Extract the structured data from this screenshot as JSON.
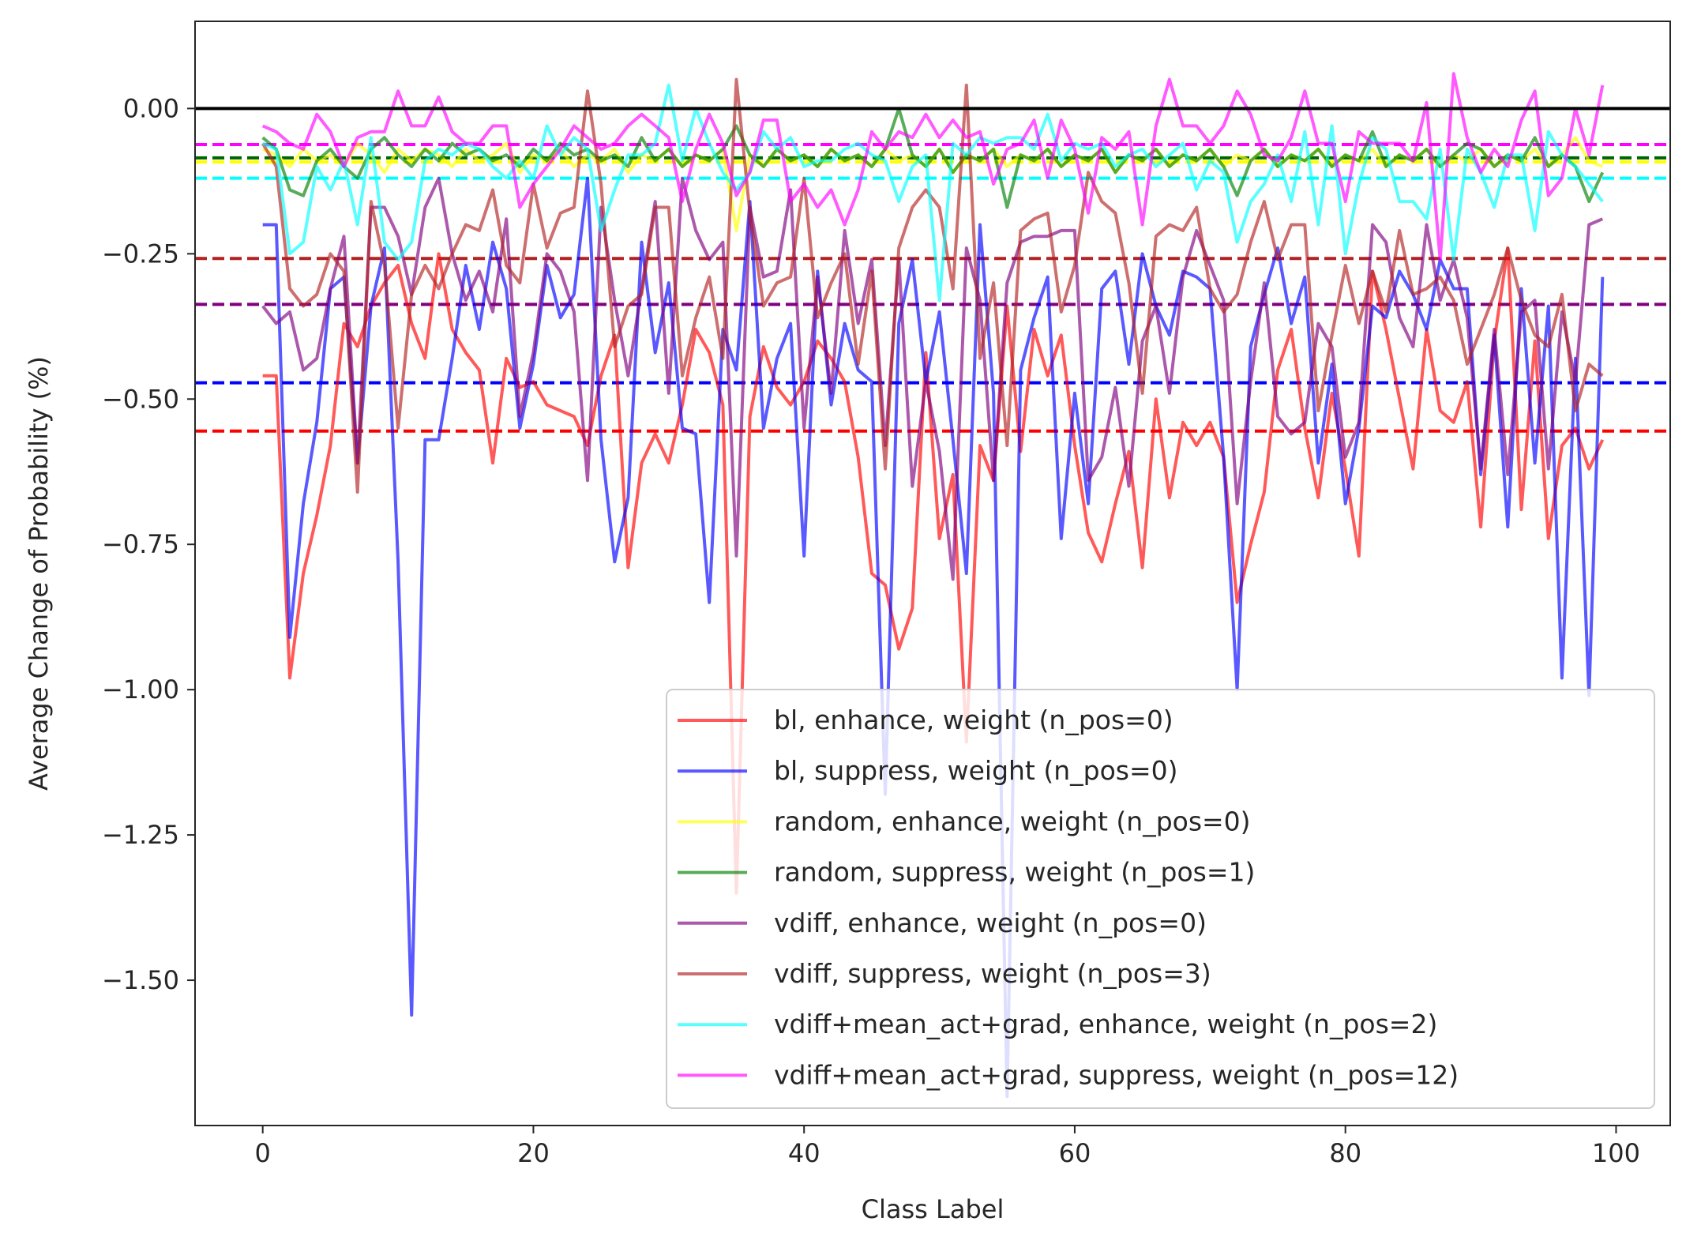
{
  "chart_data": {
    "type": "line",
    "title": "",
    "xlabel": "Class Label",
    "ylabel": "Average Change of Probability (%)",
    "xlim": [
      -5,
      104
    ],
    "ylim": [
      -1.75,
      0.15
    ],
    "xticks": [
      0,
      20,
      40,
      60,
      80,
      100
    ],
    "yticks": [
      0.0,
      -0.25,
      -0.5,
      -0.75,
      -1.0,
      -1.25,
      -1.5
    ],
    "xtick_labels": [
      "0",
      "20",
      "40",
      "60",
      "80",
      "100"
    ],
    "ytick_labels": [
      "0.00",
      "−0.25",
      "−0.50",
      "−0.75",
      "−1.00",
      "−1.25",
      "−1.50"
    ],
    "grid": false,
    "legend_position": "lower-right",
    "zero_line": {
      "y": 0.0,
      "color": "#000000"
    },
    "mean_lines": [
      {
        "y": -0.555,
        "color": "#ff0000"
      },
      {
        "y": -0.472,
        "color": "#0000ff"
      },
      {
        "y": -0.337,
        "color": "#800080"
      },
      {
        "y": -0.258,
        "color": "#b22222"
      },
      {
        "y": -0.12,
        "color": "#00ffff"
      },
      {
        "y": -0.092,
        "color": "#ffff00"
      },
      {
        "y": -0.085,
        "color": "#006400"
      },
      {
        "y": -0.062,
        "color": "#ff00ff"
      }
    ],
    "series": [
      {
        "name": "bl, enhance, weight (n_pos=0)",
        "color": "#ff0000",
        "values": [
          -0.46,
          -0.46,
          -0.98,
          -0.8,
          -0.7,
          -0.58,
          -0.37,
          -0.41,
          -0.34,
          -0.3,
          -0.27,
          -0.37,
          -0.43,
          -0.25,
          -0.38,
          -0.42,
          -0.45,
          -0.61,
          -0.43,
          -0.48,
          -0.47,
          -0.51,
          -0.52,
          -0.53,
          -0.58,
          -0.46,
          -0.39,
          -0.79,
          -0.61,
          -0.56,
          -0.61,
          -0.51,
          -0.38,
          -0.42,
          -0.51,
          -1.35,
          -0.53,
          -0.41,
          -0.48,
          -0.51,
          -0.47,
          -0.4,
          -0.43,
          -0.47,
          -0.6,
          -0.8,
          -0.82,
          -0.93,
          -0.86,
          -0.42,
          -0.74,
          -0.63,
          -1.09,
          -0.58,
          -0.64,
          -0.34,
          -0.59,
          -0.38,
          -0.46,
          -0.39,
          -0.58,
          -0.73,
          -0.78,
          -0.68,
          -0.59,
          -0.79,
          -0.5,
          -0.67,
          -0.54,
          -0.58,
          -0.54,
          -0.6,
          -0.85,
          -0.75,
          -0.66,
          -0.45,
          -0.38,
          -0.55,
          -0.67,
          -0.49,
          -0.62,
          -0.77,
          -0.28,
          -0.38,
          -0.5,
          -0.62,
          -0.38,
          -0.52,
          -0.54,
          -0.47,
          -0.72,
          -0.4,
          -0.24,
          -0.69,
          -0.4,
          -0.74,
          -0.58,
          -0.55,
          -0.62,
          -0.57
        ]
      },
      {
        "name": "bl, suppress, weight (n_pos=0)",
        "color": "#0000ff",
        "values": [
          -0.2,
          -0.2,
          -0.91,
          -0.68,
          -0.54,
          -0.31,
          -0.29,
          -0.61,
          -0.34,
          -0.24,
          -0.78,
          -1.56,
          -0.57,
          -0.57,
          -0.43,
          -0.27,
          -0.38,
          -0.23,
          -0.31,
          -0.55,
          -0.44,
          -0.27,
          -0.36,
          -0.32,
          -0.12,
          -0.57,
          -0.78,
          -0.67,
          -0.23,
          -0.42,
          -0.3,
          -0.55,
          -0.56,
          -0.85,
          -0.38,
          -0.45,
          -0.16,
          -0.55,
          -0.43,
          -0.37,
          -0.77,
          -0.28,
          -0.51,
          -0.37,
          -0.45,
          -0.47,
          -1.18,
          -0.37,
          -0.26,
          -0.47,
          -0.35,
          -0.57,
          -0.8,
          -0.2,
          -0.49,
          -1.7,
          -0.45,
          -0.36,
          -0.29,
          -0.74,
          -0.49,
          -0.68,
          -0.31,
          -0.28,
          -0.44,
          -0.25,
          -0.34,
          -0.39,
          -0.28,
          -0.29,
          -0.31,
          -0.6,
          -1.0,
          -0.41,
          -0.32,
          -0.24,
          -0.37,
          -0.29,
          -0.61,
          -0.44,
          -0.68,
          -0.55,
          -0.34,
          -0.36,
          -0.28,
          -0.32,
          -0.38,
          -0.26,
          -0.31,
          -0.31,
          -0.63,
          -0.39,
          -0.72,
          -0.31,
          -0.61,
          -0.34,
          -0.98,
          -0.43,
          -1.01,
          -0.29
        ]
      },
      {
        "name": "random, enhance, weight (n_pos=0)",
        "color": "#ffff00",
        "values": [
          -0.07,
          -0.08,
          -0.1,
          -0.07,
          -0.09,
          -0.08,
          -0.1,
          -0.06,
          -0.08,
          -0.11,
          -0.07,
          -0.09,
          -0.07,
          -0.08,
          -0.1,
          -0.07,
          -0.09,
          -0.08,
          -0.06,
          -0.11,
          -0.08,
          -0.09,
          -0.07,
          -0.1,
          -0.08,
          -0.09,
          -0.07,
          -0.11,
          -0.08,
          -0.09,
          -0.07,
          -0.1,
          -0.08,
          -0.09,
          -0.07,
          -0.21,
          -0.08,
          -0.1,
          -0.07,
          -0.09,
          -0.08,
          -0.1,
          -0.07,
          -0.09,
          -0.08,
          -0.1,
          -0.07,
          -0.09,
          -0.08,
          -0.1,
          -0.07,
          -0.11,
          -0.08,
          -0.09,
          -0.07,
          -0.1,
          -0.08,
          -0.09,
          -0.07,
          -0.1,
          -0.08,
          -0.09,
          -0.07,
          -0.11,
          -0.08,
          -0.09,
          -0.07,
          -0.1,
          -0.08,
          -0.09,
          -0.07,
          -0.1,
          -0.08,
          -0.09,
          -0.07,
          -0.1,
          -0.08,
          -0.09,
          -0.07,
          -0.1,
          -0.08,
          -0.09,
          -0.07,
          -0.1,
          -0.08,
          -0.09,
          -0.07,
          -0.1,
          -0.08,
          -0.09,
          -0.07,
          -0.1,
          -0.08,
          -0.09,
          -0.07,
          -0.1,
          -0.08,
          -0.05,
          -0.09,
          -0.1
        ]
      },
      {
        "name": "random, suppress, weight (n_pos=1)",
        "color": "#008000",
        "values": [
          -0.05,
          -0.07,
          -0.14,
          -0.15,
          -0.09,
          -0.07,
          -0.1,
          -0.12,
          -0.07,
          -0.05,
          -0.08,
          -0.1,
          -0.07,
          -0.09,
          -0.06,
          -0.08,
          -0.07,
          -0.09,
          -0.08,
          -0.1,
          -0.07,
          -0.09,
          -0.06,
          -0.08,
          -0.07,
          -0.09,
          -0.08,
          -0.1,
          -0.05,
          -0.09,
          -0.07,
          -0.1,
          -0.08,
          -0.09,
          -0.07,
          -0.03,
          -0.08,
          -0.1,
          -0.07,
          -0.09,
          -0.08,
          -0.1,
          -0.07,
          -0.09,
          -0.08,
          -0.1,
          -0.07,
          0.0,
          -0.08,
          -0.1,
          -0.07,
          -0.11,
          -0.08,
          -0.09,
          -0.07,
          -0.17,
          -0.08,
          -0.09,
          -0.07,
          -0.1,
          -0.08,
          -0.09,
          -0.07,
          -0.11,
          -0.08,
          -0.09,
          -0.07,
          -0.1,
          -0.08,
          -0.09,
          -0.07,
          -0.1,
          -0.15,
          -0.09,
          -0.07,
          -0.1,
          -0.08,
          -0.09,
          -0.07,
          -0.1,
          -0.08,
          -0.09,
          -0.04,
          -0.1,
          -0.08,
          -0.09,
          -0.07,
          -0.1,
          -0.08,
          -0.06,
          -0.07,
          -0.1,
          -0.08,
          -0.09,
          -0.05,
          -0.1,
          -0.08,
          -0.1,
          -0.16,
          -0.11
        ]
      },
      {
        "name": "vdiff, enhance, weight (n_pos=0)",
        "color": "#800080",
        "values": [
          -0.34,
          -0.37,
          -0.35,
          -0.45,
          -0.43,
          -0.31,
          -0.22,
          -0.61,
          -0.17,
          -0.17,
          -0.22,
          -0.32,
          -0.17,
          -0.12,
          -0.25,
          -0.33,
          -0.28,
          -0.35,
          -0.19,
          -0.53,
          -0.42,
          -0.25,
          -0.28,
          -0.35,
          -0.64,
          -0.17,
          -0.33,
          -0.46,
          -0.31,
          -0.16,
          -0.49,
          -0.12,
          -0.21,
          -0.26,
          -0.23,
          -0.77,
          -0.17,
          -0.29,
          -0.28,
          -0.14,
          -0.55,
          -0.29,
          -0.49,
          -0.21,
          -0.37,
          -0.26,
          -0.58,
          -0.26,
          -0.65,
          -0.47,
          -0.59,
          -0.81,
          -0.24,
          -0.33,
          -0.64,
          -0.3,
          -0.23,
          -0.22,
          -0.22,
          -0.21,
          -0.21,
          -0.64,
          -0.6,
          -0.48,
          -0.65,
          -0.4,
          -0.34,
          -0.49,
          -0.29,
          -0.21,
          -0.27,
          -0.33,
          -0.68,
          -0.47,
          -0.3,
          -0.53,
          -0.56,
          -0.54,
          -0.37,
          -0.41,
          -0.6,
          -0.54,
          -0.2,
          -0.23,
          -0.36,
          -0.41,
          -0.2,
          -0.33,
          -0.26,
          -0.36,
          -0.62,
          -0.38,
          -0.63,
          -0.35,
          -0.33,
          -0.62,
          -0.35,
          -0.47,
          -0.2,
          -0.19
        ]
      },
      {
        "name": "vdiff, suppress, weight (n_pos=3)",
        "color": "#b22222",
        "values": [
          -0.06,
          -0.1,
          -0.31,
          -0.34,
          -0.32,
          -0.25,
          -0.28,
          -0.66,
          -0.16,
          -0.27,
          -0.55,
          -0.32,
          -0.27,
          -0.31,
          -0.25,
          -0.2,
          -0.21,
          -0.14,
          -0.27,
          -0.3,
          -0.13,
          -0.24,
          -0.18,
          -0.17,
          0.03,
          -0.13,
          -0.41,
          -0.34,
          -0.32,
          -0.17,
          -0.17,
          -0.46,
          -0.36,
          -0.29,
          -0.43,
          0.05,
          -0.18,
          -0.34,
          -0.3,
          -0.29,
          -0.12,
          -0.36,
          -0.3,
          -0.25,
          -0.44,
          -0.28,
          -0.62,
          -0.24,
          -0.17,
          -0.14,
          -0.17,
          -0.31,
          0.04,
          -0.43,
          -0.3,
          -0.58,
          -0.21,
          -0.19,
          -0.18,
          -0.35,
          -0.27,
          -0.11,
          -0.16,
          -0.18,
          -0.3,
          -0.49,
          -0.22,
          -0.2,
          -0.21,
          -0.17,
          -0.31,
          -0.35,
          -0.32,
          -0.23,
          -0.16,
          -0.26,
          -0.2,
          -0.2,
          -0.52,
          -0.39,
          -0.27,
          -0.37,
          -0.28,
          -0.35,
          -0.21,
          -0.32,
          -0.31,
          -0.29,
          -0.33,
          -0.44,
          -0.38,
          -0.32,
          -0.24,
          -0.33,
          -0.39,
          -0.41,
          -0.32,
          -0.52,
          -0.44,
          -0.46
        ]
      },
      {
        "name": "vdiff+mean_act+grad, enhance, weight (n_pos=2)",
        "color": "#00ffff",
        "values": [
          -0.06,
          -0.07,
          -0.25,
          -0.23,
          -0.1,
          -0.14,
          -0.09,
          -0.2,
          -0.05,
          -0.23,
          -0.26,
          -0.23,
          -0.09,
          -0.07,
          -0.08,
          -0.06,
          -0.07,
          -0.1,
          -0.12,
          -0.09,
          -0.12,
          -0.03,
          -0.08,
          -0.05,
          -0.07,
          -0.21,
          -0.14,
          -0.08,
          -0.08,
          -0.06,
          0.04,
          -0.09,
          0.0,
          -0.06,
          -0.11,
          -0.14,
          -0.11,
          -0.04,
          -0.07,
          -0.05,
          -0.1,
          -0.09,
          -0.09,
          -0.07,
          -0.06,
          -0.08,
          -0.09,
          -0.16,
          -0.1,
          -0.08,
          -0.33,
          -0.06,
          -0.08,
          -0.05,
          -0.06,
          -0.05,
          -0.05,
          -0.07,
          -0.01,
          -0.09,
          -0.06,
          -0.07,
          -0.06,
          -0.1,
          -0.08,
          -0.07,
          -0.1,
          -0.08,
          -0.06,
          -0.14,
          -0.09,
          -0.11,
          -0.23,
          -0.16,
          -0.13,
          -0.08,
          -0.16,
          -0.04,
          -0.2,
          -0.03,
          -0.25,
          -0.13,
          -0.05,
          -0.07,
          -0.16,
          -0.16,
          -0.19,
          -0.07,
          -0.26,
          -0.07,
          -0.11,
          -0.17,
          -0.08,
          -0.08,
          -0.21,
          -0.04,
          -0.08,
          -0.1,
          -0.13,
          -0.16
        ]
      },
      {
        "name": "vdiff+mean_act+grad, suppress, weight (n_pos=12)",
        "color": "#ff00ff",
        "values": [
          -0.03,
          -0.04,
          -0.06,
          -0.07,
          -0.01,
          -0.04,
          -0.1,
          -0.05,
          -0.04,
          -0.04,
          0.03,
          -0.03,
          -0.03,
          0.02,
          -0.04,
          -0.06,
          -0.06,
          -0.03,
          -0.03,
          -0.17,
          -0.13,
          -0.1,
          -0.07,
          -0.03,
          -0.05,
          -0.07,
          -0.06,
          -0.03,
          -0.01,
          -0.03,
          -0.05,
          -0.16,
          -0.07,
          -0.01,
          -0.06,
          -0.15,
          -0.11,
          -0.02,
          -0.02,
          -0.16,
          -0.13,
          -0.17,
          -0.14,
          -0.2,
          -0.14,
          -0.04,
          -0.07,
          -0.04,
          -0.05,
          -0.01,
          -0.05,
          -0.02,
          -0.05,
          -0.04,
          -0.13,
          -0.07,
          -0.06,
          -0.02,
          -0.12,
          -0.02,
          -0.07,
          -0.18,
          -0.05,
          -0.07,
          -0.04,
          -0.2,
          -0.03,
          0.05,
          -0.03,
          -0.03,
          -0.06,
          -0.03,
          0.03,
          -0.01,
          -0.08,
          -0.09,
          -0.05,
          0.03,
          -0.06,
          -0.06,
          -0.16,
          -0.04,
          -0.06,
          -0.06,
          -0.06,
          -0.09,
          0.01,
          -0.26,
          0.06,
          -0.05,
          -0.11,
          -0.07,
          -0.1,
          -0.02,
          0.03,
          -0.15,
          -0.12,
          0.0,
          -0.08,
          0.04
        ]
      }
    ]
  }
}
